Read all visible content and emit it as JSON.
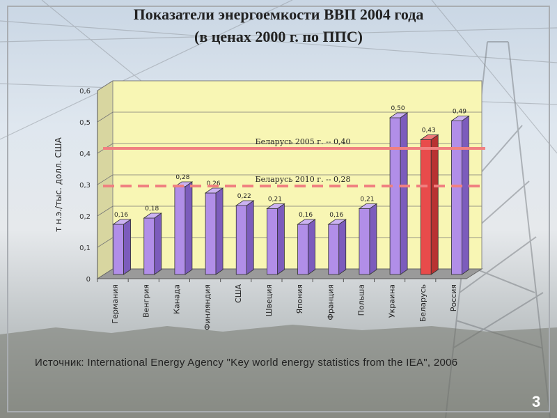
{
  "slide": {
    "title_line1": "Показатели энергоемкости ВВП 2004 года",
    "title_line2": "(в ценах 2000 г. по ППС)",
    "source": "Источник: International Energy Agency \"Key world energy statistics from the IEA\", 2006",
    "page_number": "3"
  },
  "chart_data": {
    "type": "bar",
    "ylabel": "т н.э./тыс. долл. США",
    "ylim": [
      0,
      0.6
    ],
    "yticks": [
      "0",
      "0,1",
      "0,2",
      "0,3",
      "0,4",
      "0,5",
      "0,6"
    ],
    "categories": [
      "Германия",
      "Венгрия",
      "Канада",
      "Финляндия",
      "США",
      "Швеция",
      "Япония",
      "Франция",
      "Польша",
      "Украина",
      "Беларусь",
      "Россия"
    ],
    "values": [
      0.16,
      0.18,
      0.28,
      0.26,
      0.22,
      0.21,
      0.16,
      0.16,
      0.21,
      0.5,
      0.43,
      0.49
    ],
    "value_labels": [
      "0,16",
      "0,18",
      "0,28",
      "0,26",
      "0,22",
      "0,21",
      "0,16",
      "0,16",
      "0,21",
      "0,50",
      "0,43",
      "0,49"
    ],
    "highlight_index": 10,
    "colors": {
      "bar": "#b18ee8",
      "bar_highlight": "#e84b4b",
      "plot_background": "#f8f6b4",
      "reference_line": "#f08080"
    },
    "reference_lines": [
      {
        "label": "Беларусь 2005 г. -- 0,40",
        "value": 0.4,
        "style": "solid"
      },
      {
        "label": "Беларусь 2010 г. -- 0,28",
        "value": 0.28,
        "style": "dashed"
      }
    ]
  }
}
